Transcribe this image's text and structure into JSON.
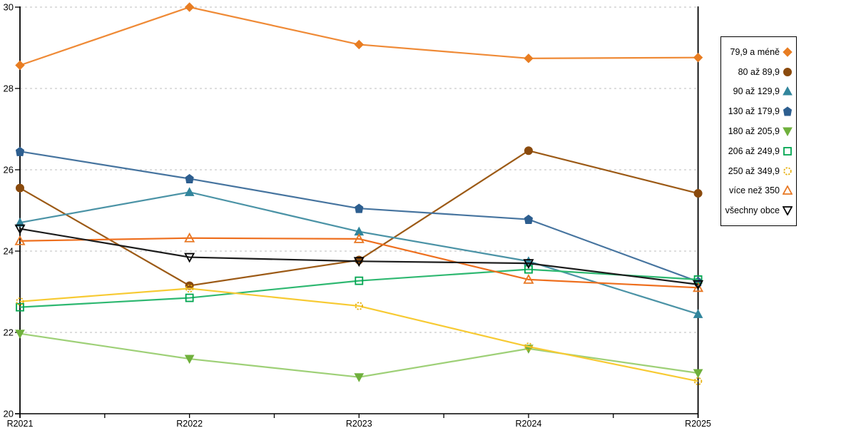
{
  "chart_data": {
    "type": "line",
    "title": "",
    "xlabel": "",
    "ylabel": "",
    "x_categories": [
      "R2021",
      "R2022",
      "R2023",
      "R2024",
      "R2025"
    ],
    "ylim": [
      20,
      30
    ],
    "yticks": [
      20,
      22,
      24,
      26,
      28,
      30
    ],
    "grid": "horizontal-dashed",
    "legend_position": "right",
    "series": [
      {
        "name": "79,9 a méně",
        "marker": "diamond",
        "filled": true,
        "color": "#e87d22",
        "line_color": "#ef8a36",
        "values": [
          28.57,
          30.0,
          29.08,
          28.74,
          28.76
        ]
      },
      {
        "name": "80 až 89,9",
        "marker": "circle",
        "filled": true,
        "color": "#8a4a0d",
        "line_color": "#9c5a16",
        "values": [
          25.55,
          23.15,
          23.78,
          26.47,
          25.42
        ]
      },
      {
        "name": "90 až 129,9",
        "marker": "triangle-up",
        "filled": true,
        "color": "#31859c",
        "line_color": "#4b93a6",
        "values": [
          24.7,
          25.45,
          24.48,
          23.75,
          22.45
        ]
      },
      {
        "name": "130 až 179,9",
        "marker": "pentagon",
        "filled": true,
        "color": "#2d5e8f",
        "line_color": "#46749f",
        "values": [
          26.45,
          25.78,
          25.05,
          24.78,
          23.25
        ]
      },
      {
        "name": "180 až 205,9",
        "marker": "triangle-down",
        "filled": true,
        "color": "#6fb03c",
        "line_color": "#9ed077",
        "values": [
          21.97,
          21.35,
          20.9,
          21.6,
          21.0
        ]
      },
      {
        "name": "206 až 249,9",
        "marker": "square",
        "filled": false,
        "color": "#00a550",
        "line_color": "#2eb871",
        "values": [
          22.62,
          22.85,
          23.27,
          23.55,
          23.3
        ]
      },
      {
        "name": "250 až 349,9",
        "marker": "circle",
        "filled": false,
        "dashed_marker": true,
        "color": "#e7b112",
        "line_color": "#f7ca33",
        "values": [
          22.76,
          23.08,
          22.65,
          21.65,
          20.8
        ]
      },
      {
        "name": "více než 350",
        "marker": "triangle-up",
        "filled": false,
        "color": "#e87722",
        "line_color": "#ee6f1e",
        "values": [
          24.25,
          24.32,
          24.3,
          23.3,
          23.1
        ]
      },
      {
        "name": "všechny obce",
        "marker": "triangle-down",
        "filled": false,
        "color": "#000000",
        "line_color": "#1c1c1c",
        "values": [
          24.55,
          23.85,
          23.75,
          23.7,
          23.18
        ]
      }
    ]
  },
  "colors": {
    "background": "#ffffff",
    "axis": "#000000",
    "gridline": "#bdbdbd",
    "text": "#000000",
    "legend_border": "#000000"
  }
}
